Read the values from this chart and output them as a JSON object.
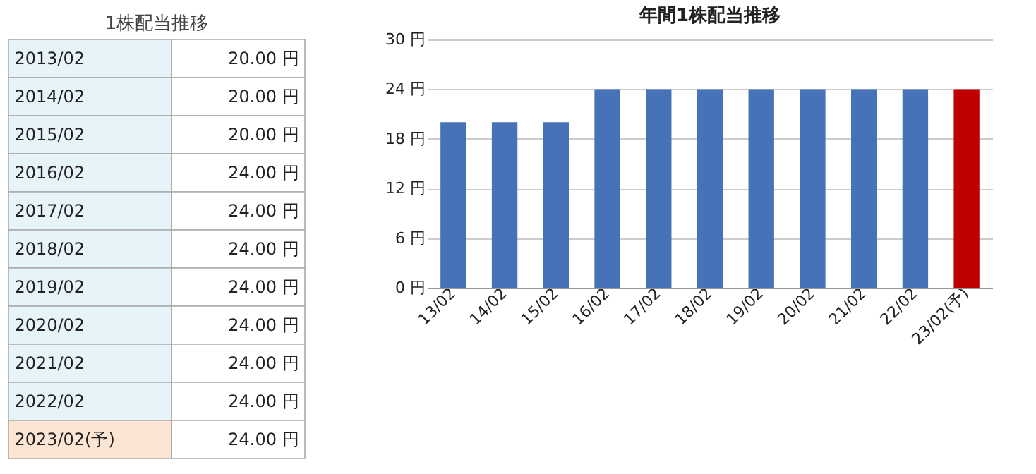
{
  "chart_data": [
    {
      "type": "other",
      "title": "1株配当推移",
      "categories": [
        "2013/02",
        "2014/02",
        "2015/02",
        "2016/02",
        "2017/02",
        "2018/02",
        "2019/02",
        "2020/02",
        "2021/02",
        "2022/02",
        "2023/02(予)"
      ],
      "value_labels": [
        "20.00 円",
        "20.00 円",
        "20.00 円",
        "24.00 円",
        "24.00 円",
        "24.00 円",
        "24.00 円",
        "24.00 円",
        "24.00 円",
        "24.00 円",
        "24.00 円"
      ],
      "colors": [
        "#e6f3f8",
        "#e6f3f8",
        "#e6f3f8",
        "#e6f3f8",
        "#e6f3f8",
        "#e6f3f8",
        "#e6f3f8",
        "#e6f3f8",
        "#e6f3f8",
        "#e6f3f8",
        "#fde5d3"
      ]
    },
    {
      "type": "bar",
      "title": "年間1株配当推移",
      "categories": [
        "13/02",
        "14/02",
        "15/02",
        "16/02",
        "17/02",
        "18/02",
        "19/02",
        "20/02",
        "21/02",
        "22/02",
        "23/02(予)"
      ],
      "values": [
        20,
        20,
        20,
        24,
        24,
        24,
        24,
        24,
        24,
        24,
        24
      ],
      "colors": [
        "#4672b8",
        "#4672b8",
        "#4672b8",
        "#4672b8",
        "#4672b8",
        "#4672b8",
        "#4672b8",
        "#4672b8",
        "#4672b8",
        "#4672b8",
        "#c00000"
      ],
      "ylim": [
        0,
        30
      ],
      "yticks": [
        {
          "value": 0,
          "label": "0 円"
        },
        {
          "value": 6,
          "label": "6 円"
        },
        {
          "value": 12,
          "label": "12 円"
        },
        {
          "value": 18,
          "label": "18 円"
        },
        {
          "value": 24,
          "label": "24 円"
        },
        {
          "value": 30,
          "label": "30 円"
        }
      ],
      "grid": "y"
    }
  ]
}
